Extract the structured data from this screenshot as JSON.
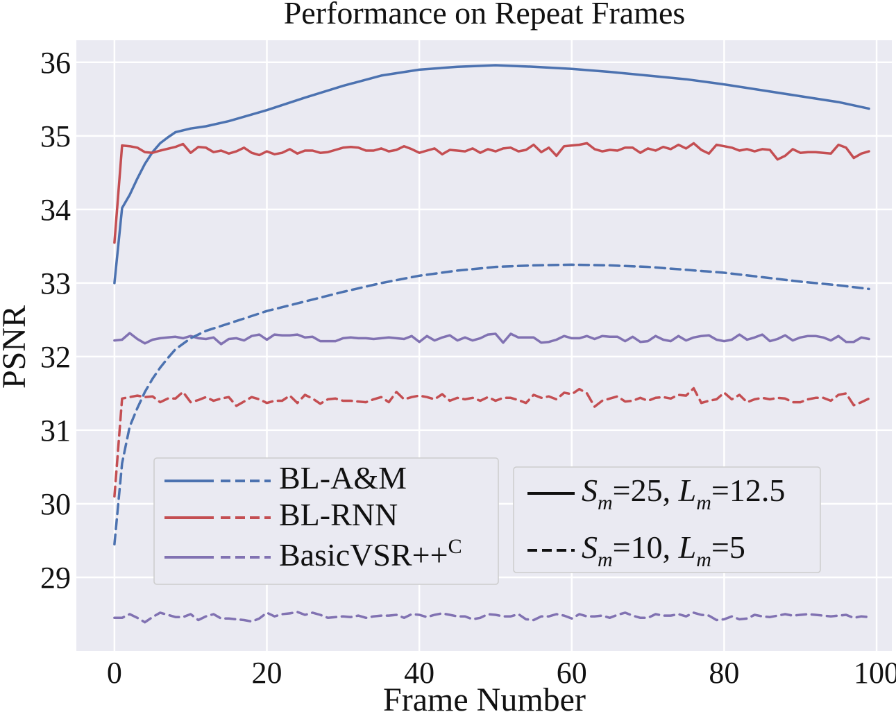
{
  "chart_data": {
    "type": "line",
    "title": "Performance on Repeat Frames",
    "xlabel": "Frame Number",
    "ylabel": "PSNR",
    "xlim": [
      -5,
      102
    ],
    "ylim": [
      28.0,
      36.3
    ],
    "xticks": [
      0,
      20,
      40,
      60,
      80,
      100
    ],
    "yticks": [
      29,
      30,
      31,
      32,
      33,
      34,
      35,
      36
    ],
    "grid": true,
    "background": "#eaeaf2",
    "colors": {
      "BL-A&M": "#4c72b0",
      "BL-RNN": "#c44e52",
      "BasicVSR++C": "#8172b2"
    },
    "series": [
      {
        "name": "BL-A&M",
        "setting": "Sm=25, Lm=12.5",
        "linestyle": "solid",
        "color": "#4c72b0",
        "x": [
          0,
          1,
          2,
          3,
          4,
          5,
          6,
          7,
          8,
          10,
          12,
          15,
          20,
          25,
          30,
          35,
          40,
          45,
          50,
          55,
          60,
          65,
          70,
          75,
          80,
          85,
          90,
          95,
          99
        ],
        "y": [
          33.0,
          34.02,
          34.2,
          34.42,
          34.62,
          34.78,
          34.9,
          34.98,
          35.05,
          35.1,
          35.13,
          35.2,
          35.35,
          35.52,
          35.68,
          35.82,
          35.9,
          35.94,
          35.96,
          35.94,
          35.91,
          35.87,
          35.82,
          35.77,
          35.7,
          35.62,
          35.54,
          35.46,
          35.37
        ]
      },
      {
        "name": "BL-RNN",
        "setting": "Sm=25, Lm=12.5",
        "linestyle": "solid",
        "color": "#c44e52",
        "x": [
          0,
          1,
          2,
          3,
          4,
          5,
          6,
          8,
          9,
          10,
          11,
          12,
          13,
          14,
          15,
          16,
          17,
          18,
          19,
          20,
          21,
          22,
          23,
          24,
          25,
          26,
          27,
          28,
          29,
          30,
          31,
          32,
          33,
          34,
          35,
          36,
          37,
          38,
          39,
          40,
          41,
          42,
          43,
          44,
          45,
          46,
          47,
          48,
          49,
          50,
          51,
          52,
          53,
          54,
          55,
          56,
          57,
          58,
          59,
          60,
          61,
          62,
          63,
          64,
          65,
          66,
          67,
          68,
          69,
          70,
          71,
          72,
          73,
          74,
          75,
          76,
          77,
          78,
          79,
          80,
          81,
          82,
          83,
          84,
          85,
          86,
          87,
          88,
          89,
          90,
          91,
          92,
          93,
          94,
          95,
          96,
          97,
          98,
          99
        ],
        "y": [
          33.55,
          34.87,
          34.86,
          34.84,
          34.78,
          34.77,
          34.8,
          34.85,
          34.89,
          34.77,
          34.85,
          34.84,
          34.78,
          34.8,
          34.76,
          34.79,
          34.84,
          34.77,
          34.74,
          34.79,
          34.75,
          34.77,
          34.82,
          34.76,
          34.8,
          34.8,
          34.77,
          34.78,
          34.81,
          34.84,
          34.85,
          34.84,
          34.8,
          34.8,
          34.83,
          34.79,
          34.81,
          34.86,
          34.82,
          34.77,
          34.8,
          34.83,
          34.75,
          34.81,
          34.8,
          34.79,
          34.83,
          34.77,
          34.82,
          34.79,
          34.83,
          34.84,
          34.79,
          34.81,
          34.88,
          34.78,
          34.84,
          34.73,
          34.86,
          34.87,
          34.88,
          34.9,
          34.82,
          34.79,
          34.81,
          34.8,
          34.84,
          34.84,
          34.77,
          34.83,
          34.8,
          34.85,
          34.82,
          34.88,
          34.83,
          34.9,
          34.81,
          34.76,
          34.88,
          34.86,
          34.84,
          34.8,
          34.82,
          34.79,
          34.82,
          34.81,
          34.68,
          34.73,
          34.82,
          34.77,
          34.78,
          34.78,
          34.77,
          34.76,
          34.88,
          34.84,
          34.7,
          34.76,
          34.79
        ]
      },
      {
        "name": "BasicVSR++C",
        "setting": "Sm=25, Lm=12.5",
        "linestyle": "solid",
        "color": "#8172b2",
        "x": [
          0,
          1,
          2,
          3,
          4,
          5,
          6,
          7,
          8,
          9,
          10,
          11,
          12,
          13,
          14,
          15,
          16,
          17,
          18,
          19,
          20,
          21,
          22,
          23,
          24,
          25,
          26,
          27,
          28,
          29,
          30,
          31,
          32,
          33,
          34,
          35,
          36,
          37,
          38,
          39,
          40,
          41,
          42,
          43,
          44,
          45,
          46,
          47,
          48,
          49,
          50,
          51,
          52,
          53,
          54,
          55,
          56,
          57,
          58,
          59,
          60,
          61,
          62,
          63,
          64,
          65,
          66,
          67,
          68,
          69,
          70,
          71,
          72,
          73,
          74,
          75,
          76,
          77,
          78,
          79,
          80,
          81,
          82,
          83,
          84,
          85,
          86,
          87,
          88,
          89,
          90,
          91,
          92,
          93,
          94,
          95,
          96,
          97,
          98,
          99
        ],
        "y": [
          32.22,
          32.23,
          32.32,
          32.24,
          32.18,
          32.23,
          32.25,
          32.26,
          32.27,
          32.25,
          32.28,
          32.25,
          32.24,
          32.26,
          32.17,
          32.24,
          32.25,
          32.22,
          32.28,
          32.3,
          32.23,
          32.3,
          32.29,
          32.29,
          32.3,
          32.26,
          32.27,
          32.21,
          32.21,
          32.21,
          32.25,
          32.26,
          32.25,
          32.25,
          32.24,
          32.25,
          32.26,
          32.25,
          32.24,
          32.28,
          32.2,
          32.28,
          32.22,
          32.26,
          32.29,
          32.22,
          32.26,
          32.22,
          32.25,
          32.3,
          32.31,
          32.19,
          32.31,
          32.26,
          32.26,
          32.26,
          32.19,
          32.2,
          32.23,
          32.28,
          32.25,
          32.25,
          32.28,
          32.24,
          32.28,
          32.27,
          32.27,
          32.21,
          32.27,
          32.2,
          32.21,
          32.28,
          32.23,
          32.21,
          32.28,
          32.22,
          32.26,
          32.28,
          32.29,
          32.23,
          32.21,
          32.23,
          32.3,
          32.23,
          32.26,
          32.3,
          32.21,
          32.24,
          32.29,
          32.22,
          32.26,
          32.28,
          32.28,
          32.26,
          32.22,
          32.28,
          32.2,
          32.2,
          32.26,
          32.24
        ]
      },
      {
        "name": "BL-A&M",
        "setting": "Sm=10, Lm=5",
        "linestyle": "dashed",
        "color": "#4c72b0",
        "x": [
          0,
          1,
          2,
          3,
          4,
          5,
          6,
          7,
          8,
          10,
          12,
          15,
          20,
          25,
          30,
          35,
          40,
          45,
          50,
          55,
          60,
          65,
          70,
          75,
          80,
          85,
          90,
          95,
          99
        ],
        "y": [
          29.45,
          30.55,
          31.05,
          31.3,
          31.52,
          31.7,
          31.85,
          31.98,
          32.1,
          32.25,
          32.35,
          32.45,
          32.62,
          32.75,
          32.88,
          33.0,
          33.1,
          33.17,
          33.22,
          33.24,
          33.25,
          33.24,
          33.22,
          33.18,
          33.14,
          33.08,
          33.02,
          32.97,
          32.92
        ]
      },
      {
        "name": "BL-RNN",
        "setting": "Sm=10, Lm=5",
        "linestyle": "dashed",
        "color": "#c44e52",
        "x": [
          0,
          1,
          2,
          3,
          4,
          5,
          6,
          7,
          8,
          9,
          10,
          11,
          12,
          13,
          14,
          15,
          16,
          17,
          18,
          19,
          20,
          21,
          22,
          23,
          24,
          25,
          26,
          27,
          28,
          29,
          30,
          31,
          32,
          33,
          34,
          35,
          36,
          37,
          38,
          39,
          40,
          41,
          42,
          43,
          44,
          45,
          46,
          47,
          48,
          49,
          50,
          51,
          52,
          53,
          54,
          55,
          56,
          57,
          58,
          59,
          60,
          61,
          62,
          63,
          64,
          65,
          66,
          67,
          68,
          69,
          70,
          71,
          72,
          73,
          74,
          75,
          76,
          77,
          78,
          79,
          80,
          81,
          82,
          83,
          84,
          85,
          86,
          87,
          88,
          89,
          90,
          91,
          92,
          93,
          94,
          95,
          96,
          97,
          98,
          99
        ],
        "y": [
          30.1,
          31.43,
          31.45,
          31.47,
          31.45,
          31.46,
          31.38,
          31.43,
          31.43,
          31.52,
          31.38,
          31.41,
          31.45,
          31.4,
          31.43,
          31.45,
          31.33,
          31.39,
          31.45,
          31.42,
          31.37,
          31.4,
          31.4,
          31.47,
          31.37,
          31.48,
          31.43,
          31.36,
          31.42,
          31.43,
          31.4,
          31.4,
          31.39,
          31.38,
          31.42,
          31.45,
          31.38,
          31.52,
          31.42,
          31.45,
          31.47,
          31.45,
          31.42,
          31.49,
          31.4,
          31.44,
          31.42,
          31.44,
          31.4,
          31.45,
          31.4,
          31.44,
          31.44,
          31.41,
          31.37,
          31.48,
          31.44,
          31.46,
          31.42,
          31.51,
          31.49,
          31.56,
          31.5,
          31.32,
          31.4,
          31.43,
          31.46,
          31.39,
          31.4,
          31.44,
          31.4,
          31.44,
          31.45,
          31.43,
          31.48,
          31.47,
          31.57,
          31.37,
          31.4,
          31.42,
          31.51,
          31.42,
          31.48,
          31.38,
          31.42,
          31.44,
          31.42,
          31.44,
          31.43,
          31.38,
          31.38,
          31.42,
          31.44,
          31.44,
          31.4,
          31.48,
          31.5,
          31.34,
          31.38,
          31.43
        ]
      },
      {
        "name": "BasicVSR++C",
        "setting": "Sm=10, Lm=5",
        "linestyle": "dashed",
        "color": "#8172b2",
        "x": [
          0,
          1,
          2,
          3,
          4,
          5,
          6,
          7,
          8,
          9,
          10,
          11,
          12,
          13,
          14,
          15,
          16,
          17,
          18,
          19,
          20,
          21,
          22,
          23,
          24,
          25,
          26,
          27,
          28,
          29,
          30,
          31,
          32,
          33,
          34,
          35,
          36,
          37,
          38,
          39,
          40,
          41,
          42,
          43,
          44,
          45,
          46,
          47,
          48,
          49,
          50,
          51,
          52,
          53,
          54,
          55,
          56,
          57,
          58,
          59,
          60,
          61,
          62,
          63,
          64,
          65,
          66,
          67,
          68,
          69,
          70,
          71,
          72,
          73,
          74,
          75,
          76,
          77,
          78,
          79,
          80,
          81,
          82,
          83,
          84,
          85,
          86,
          87,
          88,
          89,
          90,
          91,
          92,
          93,
          94,
          95,
          96,
          97,
          98,
          99
        ],
        "y": [
          28.45,
          28.45,
          28.5,
          28.45,
          28.39,
          28.46,
          28.52,
          28.49,
          28.46,
          28.46,
          28.5,
          28.42,
          28.47,
          28.5,
          28.44,
          28.44,
          28.43,
          28.42,
          28.4,
          28.44,
          28.52,
          28.47,
          28.5,
          28.51,
          28.53,
          28.49,
          28.52,
          28.49,
          28.45,
          28.46,
          28.47,
          28.46,
          28.48,
          28.45,
          28.47,
          28.48,
          28.48,
          28.49,
          28.45,
          28.5,
          28.49,
          28.46,
          28.49,
          28.51,
          28.49,
          28.47,
          28.47,
          28.43,
          28.45,
          28.5,
          28.49,
          28.47,
          28.47,
          28.5,
          28.43,
          28.42,
          28.47,
          28.47,
          28.5,
          28.48,
          28.44,
          28.5,
          28.47,
          28.47,
          28.48,
          28.45,
          28.49,
          28.52,
          28.48,
          28.45,
          28.45,
          28.5,
          28.48,
          28.48,
          28.5,
          28.47,
          28.52,
          28.49,
          28.48,
          28.42,
          28.43,
          28.47,
          28.43,
          28.44,
          28.49,
          28.47,
          28.46,
          28.48,
          28.5,
          28.48,
          28.49,
          28.5,
          28.49,
          28.48,
          28.47,
          28.48,
          28.49,
          28.45,
          28.47,
          28.46
        ]
      }
    ]
  },
  "legend_left": {
    "placement": "lower-left",
    "entries": [
      {
        "label": "BL-A&M",
        "color": "#4c72b0"
      },
      {
        "label": "BL-RNN",
        "color": "#c44e52"
      },
      {
        "label": "BasicVSR++",
        "sup": "C",
        "color": "#8172b2"
      }
    ]
  },
  "legend_right": {
    "placement": "lower-center",
    "entries": [
      {
        "linestyle": "solid",
        "s": "S",
        "s_sub": "m",
        "s_val": "=25, ",
        "l": "L",
        "l_sub": "m",
        "l_val": "=12.5"
      },
      {
        "linestyle": "dashed",
        "s": "S",
        "s_sub": "m",
        "s_val": "=10, ",
        "l": "L",
        "l_sub": "m",
        "l_val": "=5"
      }
    ]
  }
}
